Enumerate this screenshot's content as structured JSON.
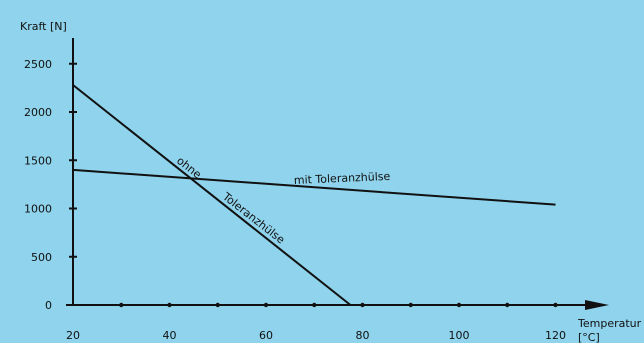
{
  "colors": {
    "background": "#8fd3ec",
    "ink": "#111111"
  },
  "chart_data": {
    "type": "line",
    "ylabel": "Kraft [N]",
    "xlabel": "Temperatur",
    "xunit": "[°C]",
    "xlim": [
      20,
      130
    ],
    "ylim": [
      0,
      2600
    ],
    "xticks": [
      20,
      40,
      60,
      80,
      100,
      120
    ],
    "yticks": [
      0,
      500,
      1000,
      1500,
      2000,
      2500
    ],
    "grid": false,
    "series": [
      {
        "name": "ohne Toleranzhülse",
        "label_parts": [
          "ohne",
          "Toleranzhülse"
        ],
        "x": [
          20,
          77.5
        ],
        "y": [
          2280,
          0
        ]
      },
      {
        "name": "mit Toleranzhülse",
        "x": [
          20,
          120
        ],
        "y": [
          1400,
          1040
        ]
      }
    ]
  }
}
